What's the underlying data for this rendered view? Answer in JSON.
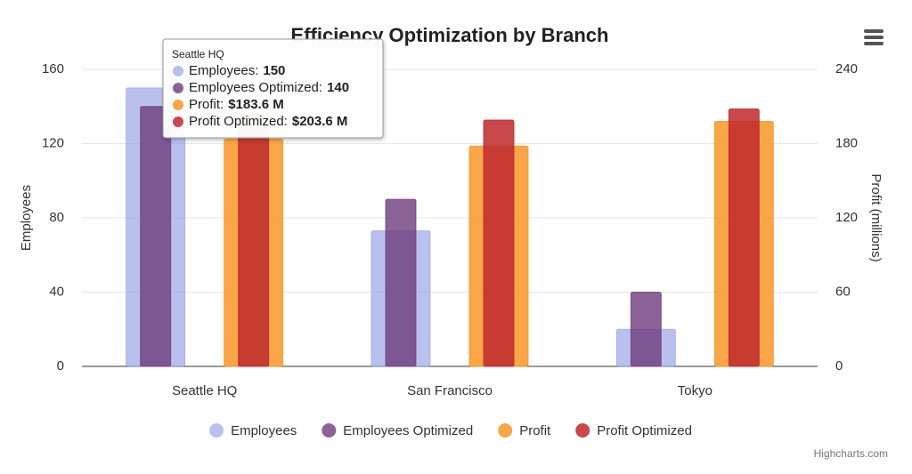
{
  "chart_data": {
    "type": "bar",
    "title": "Efficiency Optimization by Branch",
    "categories": [
      "Seattle HQ",
      "San Francisco",
      "Tokyo"
    ],
    "y_label": "Employees",
    "y2_label": "Profit (millions)",
    "ylim": [
      0,
      160
    ],
    "yticks": [
      0,
      40,
      80,
      120,
      160
    ],
    "y2lim": [
      0,
      240
    ],
    "y2ticks": [
      0,
      60,
      120,
      180,
      240
    ],
    "grid": true,
    "legend": "bottom",
    "series": [
      {
        "name": "Employees",
        "color": "rgba(140,150,225,0.6)",
        "values": [
          150,
          73,
          20
        ]
      },
      {
        "name": "Employees Optimized",
        "color": "rgba(110,60,125,0.8)",
        "values": [
          140,
          90,
          40
        ]
      },
      {
        "name": "Profit",
        "color": "rgba(247,150,40,0.85)",
        "axis": "y2",
        "values": [
          183.6,
          178,
          198
        ],
        "value_labels": [
          "$183.6 M",
          null,
          null
        ]
      },
      {
        "name": "Profit Optimized",
        "color": "rgba(190,40,45,0.85)",
        "axis": "y2",
        "values": [
          203.6,
          199,
          208
        ],
        "value_labels": [
          "$203.6 M",
          null,
          null
        ]
      }
    ],
    "tooltip": {
      "labels": [
        "Employees:",
        "Employees Optimized:",
        "Profit:",
        "Profit Optimized:"
      ]
    },
    "credit": "Highcharts.com"
  }
}
